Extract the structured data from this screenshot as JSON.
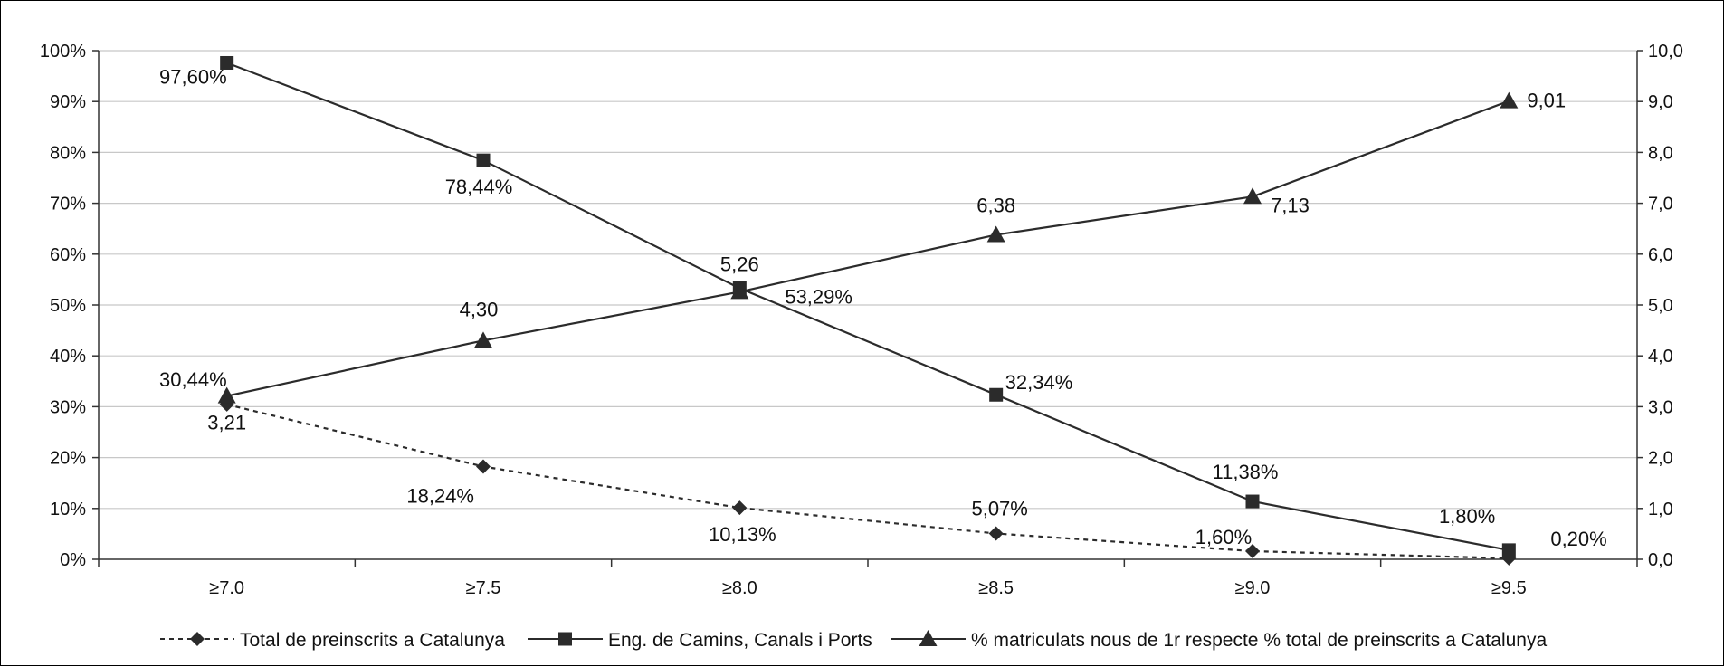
{
  "chart_data": {
    "type": "line",
    "categories": [
      "≥7.0",
      "≥7.5",
      "≥8.0",
      "≥8.5",
      "≥9.0",
      "≥9.5"
    ],
    "y_left": {
      "min": 0,
      "max": 100,
      "step": 10,
      "tick_labels": [
        "0%",
        "10%",
        "20%",
        "30%",
        "40%",
        "50%",
        "60%",
        "70%",
        "80%",
        "90%",
        "100%"
      ]
    },
    "y_right": {
      "min": 0,
      "max": 10,
      "step": 1,
      "tick_labels": [
        "0,0",
        "1,0",
        "2,0",
        "3,0",
        "4,0",
        "5,0",
        "6,0",
        "7,0",
        "8,0",
        "9,0",
        "10,0"
      ]
    },
    "grid": true,
    "legend_position": "bottom",
    "series": [
      {
        "name": "Total de preinscrits a Catalunya",
        "axis": "left",
        "marker": "diamond",
        "line_style": "dashed",
        "values": [
          30.44,
          18.24,
          10.13,
          5.07,
          1.6,
          0.2
        ],
        "labels": [
          "30,44%",
          "18,24%",
          "10,13%",
          "5,07%",
          "1,60%",
          "0,20%"
        ]
      },
      {
        "name": "Eng. de Camins, Canals i Ports",
        "axis": "left",
        "marker": "square",
        "line_style": "solid",
        "values": [
          97.6,
          78.44,
          53.29,
          32.34,
          11.38,
          1.8
        ],
        "labels": [
          "97,60%",
          "78,44%",
          "53,29%",
          "32,34%",
          "11,38%",
          "1,80%"
        ]
      },
      {
        "name": "% matriculats nous de 1r respecte % total de preinscrits a Catalunya",
        "axis": "right",
        "marker": "triangle",
        "line_style": "solid",
        "values": [
          3.21,
          4.3,
          5.26,
          6.38,
          7.13,
          9.01
        ],
        "labels": [
          "3,21",
          "4,30",
          "5,26",
          "6,38",
          "7,13",
          "9,01"
        ]
      }
    ],
    "colors": {
      "line": "#2b2b2b",
      "grid": "#c8c8c8",
      "axis": "#333333"
    }
  }
}
